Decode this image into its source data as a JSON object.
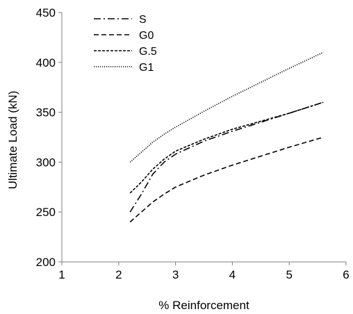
{
  "chart_data": {
    "type": "line",
    "title": "",
    "xlabel": "% Reinforcement",
    "ylabel": "Ultimate Load (kN)",
    "xlim": [
      1,
      6
    ],
    "ylim": [
      200,
      450
    ],
    "x_ticks": [
      1,
      2,
      3,
      4,
      5,
      6
    ],
    "y_ticks": [
      200,
      250,
      300,
      350,
      400,
      450
    ],
    "grid": false,
    "legend_position": "top-left",
    "series": [
      {
        "name": "S",
        "dash": "dash-dot",
        "points": [
          [
            2.2,
            250
          ],
          [
            2.4,
            268
          ],
          [
            2.6,
            288
          ],
          [
            2.8,
            300
          ],
          [
            3.0,
            308
          ],
          [
            3.5,
            321
          ],
          [
            4.0,
            331
          ],
          [
            4.5,
            340
          ],
          [
            5.0,
            349
          ],
          [
            5.6,
            360
          ]
        ]
      },
      {
        "name": "G0",
        "dash": "long-dash",
        "points": [
          [
            2.2,
            240
          ],
          [
            2.4,
            250
          ],
          [
            2.6,
            260
          ],
          [
            2.8,
            268
          ],
          [
            3.0,
            275
          ],
          [
            3.5,
            287
          ],
          [
            4.0,
            297
          ],
          [
            4.5,
            306
          ],
          [
            5.0,
            315
          ],
          [
            5.6,
            325
          ]
        ]
      },
      {
        "name": "G.5",
        "dash": "short-dash",
        "points": [
          [
            2.2,
            269
          ],
          [
            2.4,
            280
          ],
          [
            2.6,
            293
          ],
          [
            2.8,
            303
          ],
          [
            3.0,
            311
          ],
          [
            3.5,
            323
          ],
          [
            4.0,
            333
          ],
          [
            4.5,
            341
          ],
          [
            5.0,
            349
          ],
          [
            5.6,
            360
          ]
        ]
      },
      {
        "name": "G1",
        "dash": "dotted",
        "points": [
          [
            2.2,
            300
          ],
          [
            2.4,
            310
          ],
          [
            2.6,
            320
          ],
          [
            2.8,
            328
          ],
          [
            3.0,
            335
          ],
          [
            3.5,
            351
          ],
          [
            4.0,
            366
          ],
          [
            4.5,
            380
          ],
          [
            5.0,
            394
          ],
          [
            5.6,
            410
          ]
        ]
      }
    ]
  }
}
